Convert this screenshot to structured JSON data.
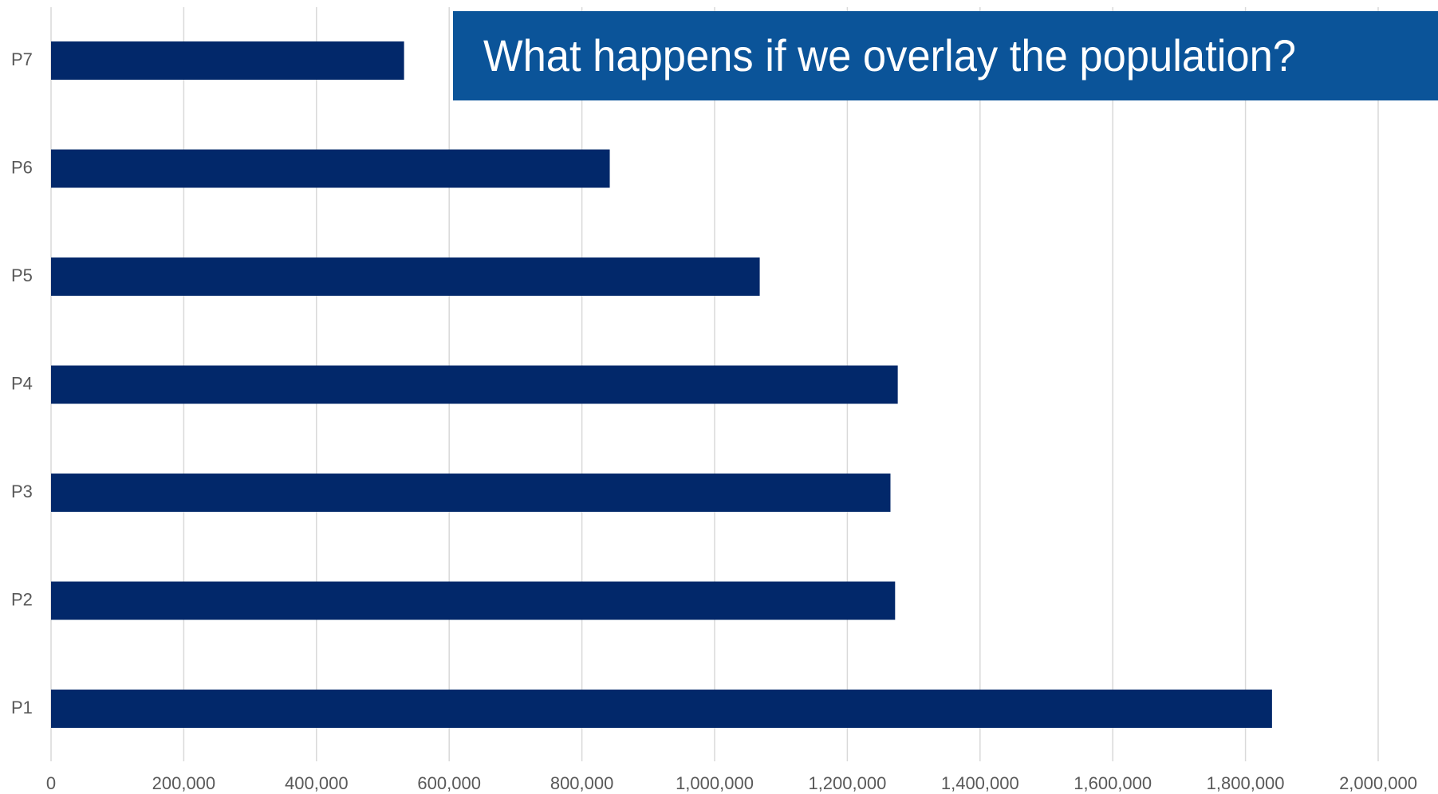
{
  "chart_data": {
    "type": "bar",
    "orientation": "horizontal",
    "title": "What happens if we overlay the population?",
    "categories": [
      "P1",
      "P2",
      "P3",
      "P4",
      "P5",
      "P6",
      "P7"
    ],
    "values": [
      1840000,
      1272000,
      1265000,
      1276000,
      1068000,
      842000,
      532000
    ],
    "color": "#02286a",
    "xlim": [
      0,
      2000000
    ],
    "xticks": [
      0,
      {
        "value": 200000,
        "label": "200,000"
      },
      {
        "value": 400000,
        "label": "400,000"
      },
      {
        "value": 600000,
        "label": "600,000"
      },
      {
        "value": 800000,
        "label": "800,000"
      },
      {
        "value": 1000000,
        "label": "1,000,000"
      },
      {
        "value": 1200000,
        "label": "1,200,000"
      },
      {
        "value": 1400000,
        "label": "1,400,000"
      },
      {
        "value": 1600000,
        "label": "1,600,000"
      },
      {
        "value": 1800000,
        "label": "1,800,000"
      },
      {
        "value": 2000000,
        "label": "2,000,000"
      }
    ],
    "grid": true
  }
}
